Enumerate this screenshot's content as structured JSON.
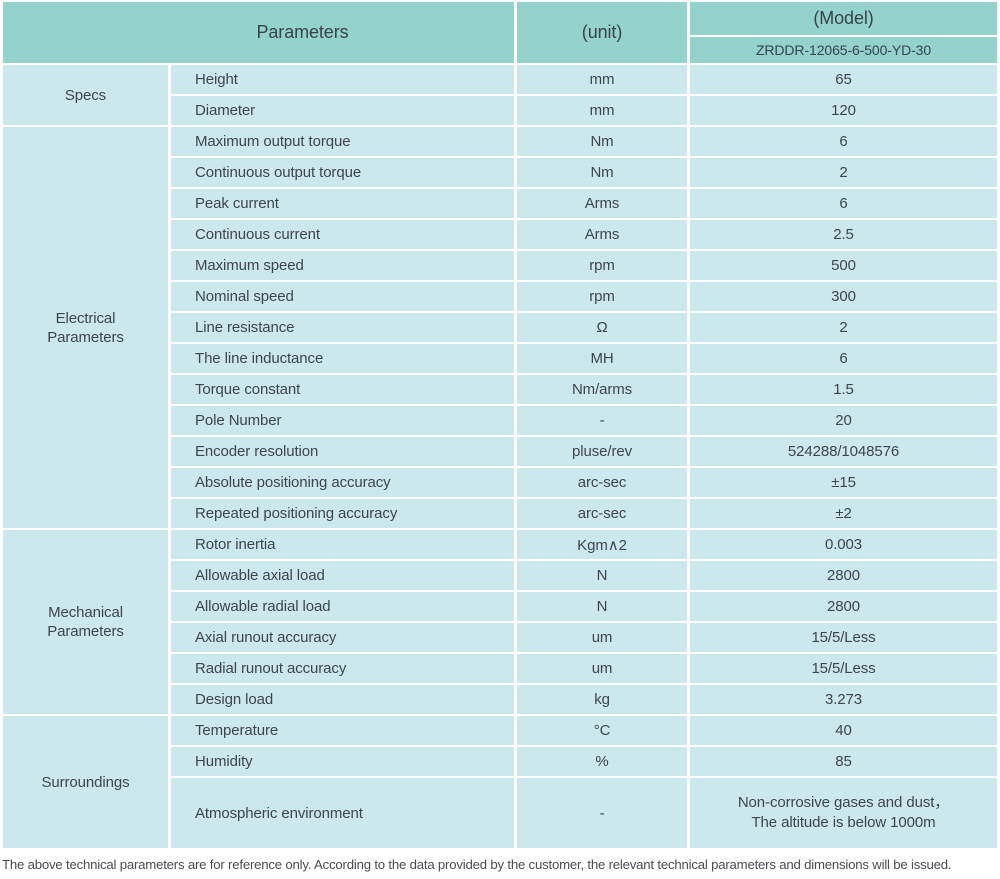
{
  "colors": {
    "header_bg": "#94d2cc",
    "cell_bg": "#cbe8ec",
    "header_text": "#3a4347",
    "cell_text": "#3f464b",
    "footer_text": "#494d52",
    "page_bg": "#ffffff"
  },
  "header": {
    "parameters_label": "Parameters",
    "unit_label": "(unit)",
    "model_label": "(Model)",
    "model_value": "ZRDDR-12065-6-500-YD-30"
  },
  "sections": [
    {
      "group": "Specs",
      "rows": [
        {
          "param": "Height",
          "unit": "mm",
          "value": "65"
        },
        {
          "param": "Diameter",
          "unit": "mm",
          "value": "120"
        }
      ]
    },
    {
      "group": "Electrical\nParameters",
      "rows": [
        {
          "param": "Maximum output torque",
          "unit": "Nm",
          "value": "6"
        },
        {
          "param": "Continuous output torque",
          "unit": "Nm",
          "value": "2"
        },
        {
          "param": "Peak current",
          "unit": "Arms",
          "value": "6"
        },
        {
          "param": "Continuous current",
          "unit": "Arms",
          "value": "2.5"
        },
        {
          "param": "Maximum speed",
          "unit": "rpm",
          "value": "500"
        },
        {
          "param": "Nominal speed",
          "unit": "rpm",
          "value": "300"
        },
        {
          "param": "Line resistance",
          "unit": "Ω",
          "value": "2"
        },
        {
          "param": "The line inductance",
          "unit": "MH",
          "value": "6"
        },
        {
          "param": "Torque constant",
          "unit": "Nm/arms",
          "value": "1.5"
        },
        {
          "param": "Pole Number",
          "unit": "-",
          "value": "20"
        },
        {
          "param": "Encoder resolution",
          "unit": "pluse/rev",
          "value": "524288/1048576"
        },
        {
          "param": "Absolute positioning accuracy",
          "unit": "arc-sec",
          "value": "±15"
        },
        {
          "param": "Repeated positioning accuracy",
          "unit": "arc-sec",
          "value": "±2"
        }
      ]
    },
    {
      "group": "Mechanical\nParameters",
      "rows": [
        {
          "param": "Rotor inertia",
          "unit": "Kgm∧2",
          "value": "0.003"
        },
        {
          "param": "Allowable axial load",
          "unit": "N",
          "value": "2800"
        },
        {
          "param": "Allowable radial load",
          "unit": "N",
          "value": "2800"
        },
        {
          "param": "Axial runout accuracy",
          "unit": "um",
          "value": "15/5/Less"
        },
        {
          "param": "Radial runout accuracy",
          "unit": "um",
          "value": "15/5/Less"
        },
        {
          "param": "Design load",
          "unit": "kg",
          "value": "3.273"
        }
      ]
    },
    {
      "group": "Surroundings",
      "rows": [
        {
          "param": "Temperature",
          "unit": "°C",
          "value": "40"
        },
        {
          "param": "Humidity",
          "unit": "%",
          "value": "85"
        },
        {
          "param": "Atmospheric environment",
          "unit": "-",
          "value_line1": "Non-corrosive gases and dust，",
          "value_line2": "The altitude is below 1000m"
        }
      ]
    }
  ],
  "footer": {
    "note": "The above technical parameters are for reference only. According to the data provided by the customer, the relevant technical parameters and dimensions will be issued."
  }
}
